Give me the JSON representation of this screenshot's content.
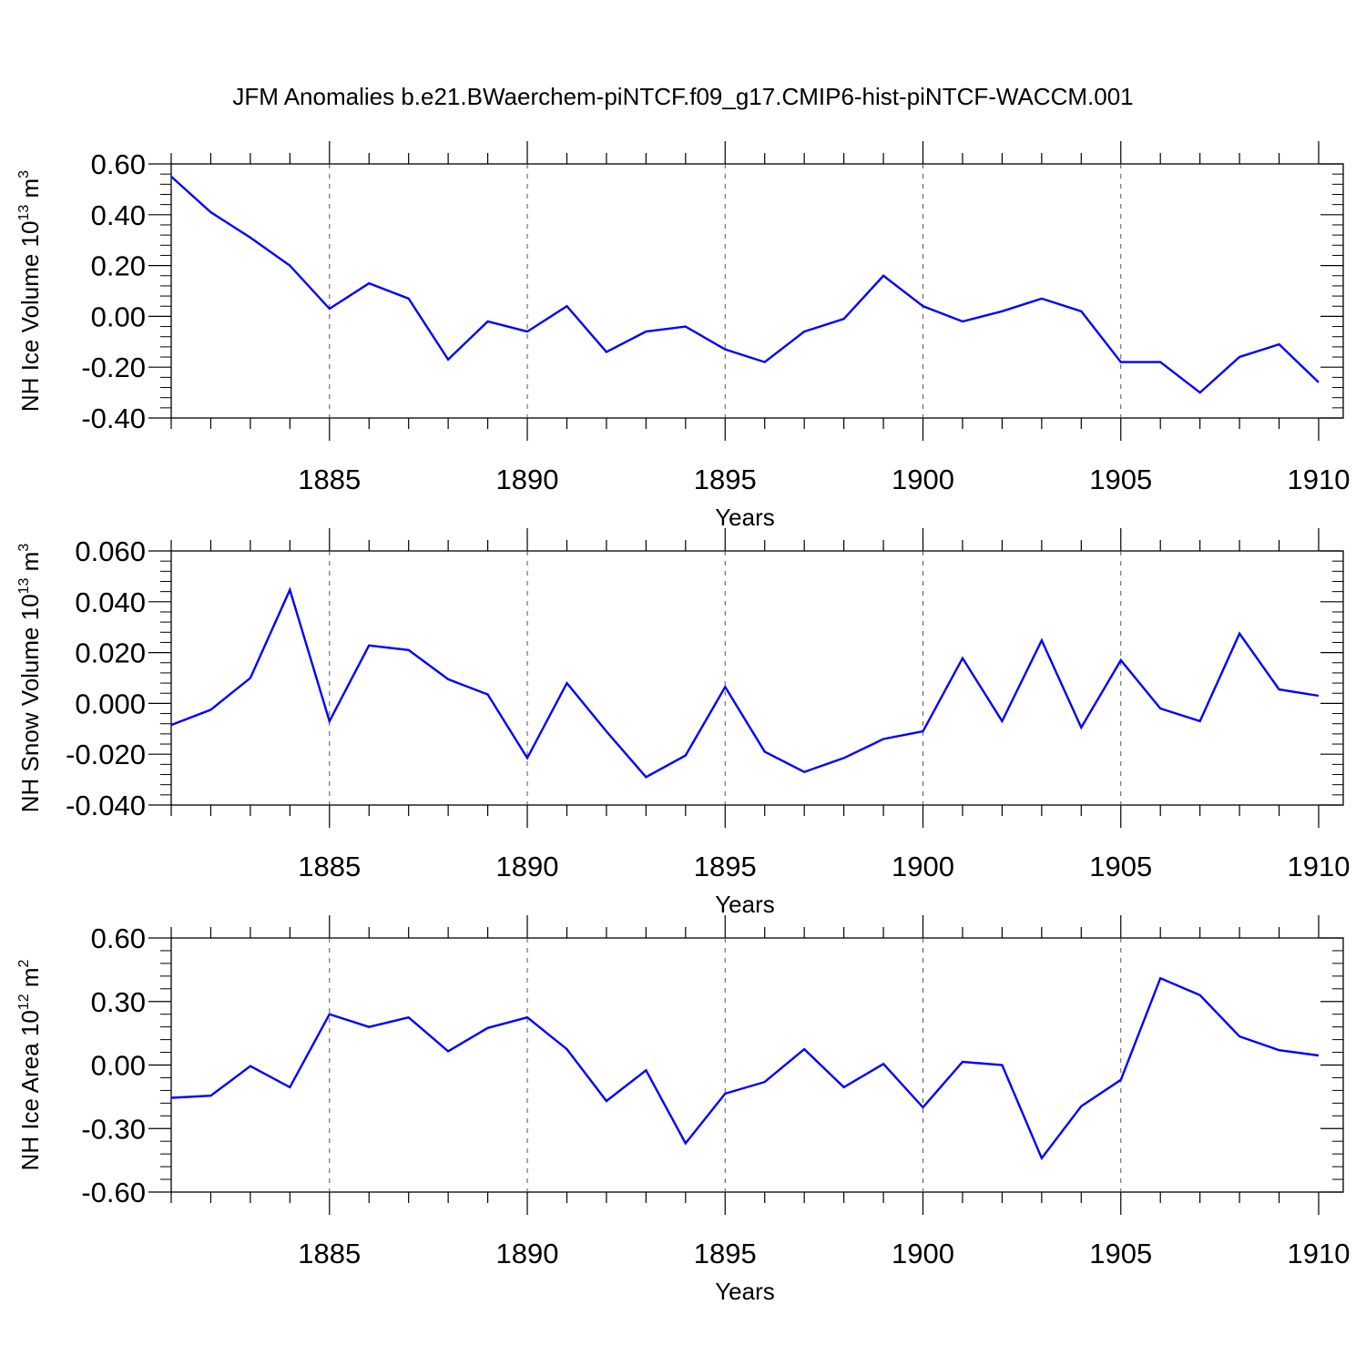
{
  "title": "JFM Anomalies b.e21.BWaerchem-piNTCF.f09_g17.CMIP6-hist-piNTCF-WACCM.001",
  "line_color": "#0000ff",
  "chart_data": [
    {
      "type": "line",
      "title": "",
      "xlabel": "Years",
      "ylabel_main": "NH Ice Volume 10",
      "ylabel_exp": "13",
      "ylabel_unit": " m",
      "ylabel_unit_exp": "3",
      "xlim": [
        1881,
        1910
      ],
      "ylim": [
        -0.4,
        0.6
      ],
      "x_ticks": [
        1885,
        1890,
        1895,
        1900,
        1905,
        1910
      ],
      "x_tick_labels": [
        "1885",
        "1890",
        "1895",
        "1900",
        "1905",
        "1910"
      ],
      "y_ticks": [
        -0.4,
        -0.2,
        0.0,
        0.2,
        0.4,
        0.6
      ],
      "y_tick_labels": [
        "-0.40",
        "-0.20",
        "0.00",
        "0.20",
        "0.40",
        "0.60"
      ],
      "grid": "vertical dashed at major x ticks",
      "x": [
        1881,
        1882,
        1883,
        1884,
        1885,
        1886,
        1887,
        1888,
        1889,
        1890,
        1891,
        1892,
        1893,
        1894,
        1895,
        1896,
        1897,
        1898,
        1899,
        1900,
        1901,
        1902,
        1903,
        1904,
        1905,
        1906,
        1907,
        1908,
        1909,
        1910
      ],
      "values": [
        0.55,
        0.41,
        0.31,
        0.2,
        0.03,
        0.13,
        0.07,
        -0.17,
        -0.02,
        -0.06,
        0.04,
        -0.14,
        -0.06,
        -0.04,
        -0.13,
        -0.18,
        -0.06,
        -0.01,
        0.16,
        0.04,
        -0.02,
        0.02,
        0.07,
        0.02,
        -0.18,
        -0.18,
        -0.3,
        -0.16,
        -0.11,
        -0.26
      ]
    },
    {
      "type": "line",
      "title": "",
      "xlabel": "Years",
      "ylabel_main": "NH Snow Volume 10",
      "ylabel_exp": "13",
      "ylabel_unit": " m",
      "ylabel_unit_exp": "3",
      "xlim": [
        1881,
        1910
      ],
      "ylim": [
        -0.04,
        0.06
      ],
      "x_ticks": [
        1885,
        1890,
        1895,
        1900,
        1905,
        1910
      ],
      "x_tick_labels": [
        "1885",
        "1890",
        "1895",
        "1900",
        "1905",
        "1910"
      ],
      "y_ticks": [
        -0.04,
        -0.02,
        0.0,
        0.02,
        0.04,
        0.06
      ],
      "y_tick_labels": [
        "-0.040",
        "-0.020",
        "0.000",
        "0.020",
        "0.040",
        "0.060"
      ],
      "grid": "vertical dashed at major x ticks",
      "x": [
        1881,
        1882,
        1883,
        1884,
        1885,
        1886,
        1887,
        1888,
        1889,
        1890,
        1891,
        1892,
        1893,
        1894,
        1895,
        1896,
        1897,
        1898,
        1899,
        1900,
        1901,
        1902,
        1903,
        1904,
        1905,
        1906,
        1907,
        1908,
        1909,
        1910
      ],
      "values": [
        -0.0085,
        -0.0025,
        0.01,
        0.0447,
        -0.007,
        0.0228,
        0.021,
        0.0095,
        0.0035,
        -0.0215,
        0.008,
        -0.011,
        -0.029,
        -0.0205,
        0.0065,
        -0.019,
        -0.027,
        -0.0215,
        -0.014,
        -0.011,
        0.0178,
        -0.007,
        0.0248,
        -0.0095,
        0.017,
        -0.002,
        -0.007,
        0.0275,
        0.0055,
        0.003
      ]
    },
    {
      "type": "line",
      "title": "",
      "xlabel": "Years",
      "ylabel_main": "NH Ice Area 10",
      "ylabel_exp": "12",
      "ylabel_unit": " m",
      "ylabel_unit_exp": "2",
      "xlim": [
        1881,
        1910
      ],
      "ylim": [
        -0.6,
        0.6
      ],
      "x_ticks": [
        1885,
        1890,
        1895,
        1900,
        1905,
        1910
      ],
      "x_tick_labels": [
        "1885",
        "1890",
        "1895",
        "1900",
        "1905",
        "1910"
      ],
      "y_ticks": [
        -0.6,
        -0.3,
        0.0,
        0.3,
        0.6
      ],
      "y_tick_labels": [
        "-0.60",
        "-0.30",
        "0.00",
        "0.30",
        "0.60"
      ],
      "grid": "vertical dashed at major x ticks",
      "x": [
        1881,
        1882,
        1883,
        1884,
        1885,
        1886,
        1887,
        1888,
        1889,
        1890,
        1891,
        1892,
        1893,
        1894,
        1895,
        1896,
        1897,
        1898,
        1899,
        1900,
        1901,
        1902,
        1903,
        1904,
        1905,
        1906,
        1907,
        1908,
        1909,
        1910
      ],
      "values": [
        -0.155,
        -0.145,
        -0.005,
        -0.105,
        0.24,
        0.18,
        0.225,
        0.065,
        0.175,
        0.225,
        0.075,
        -0.17,
        -0.025,
        -0.37,
        -0.135,
        -0.08,
        0.075,
        -0.105,
        0.005,
        -0.2,
        0.015,
        0.0,
        -0.44,
        -0.195,
        -0.07,
        0.41,
        0.33,
        0.135,
        0.07,
        0.045
      ]
    }
  ]
}
